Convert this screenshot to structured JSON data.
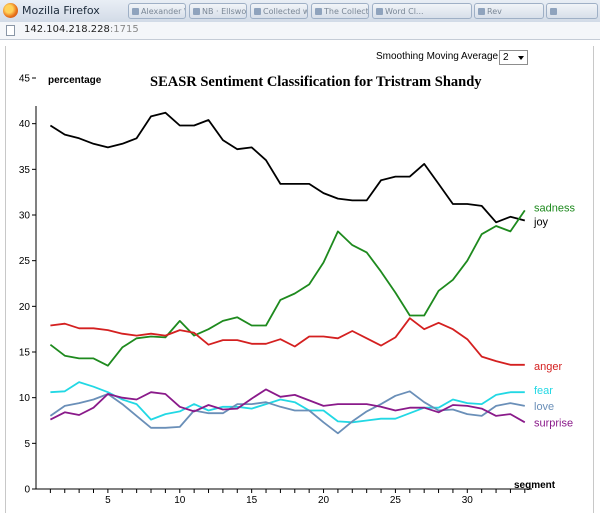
{
  "window": {
    "title": "Mozilla Firefox",
    "tabs": [
      "Mozilla Firefox",
      "Alexander Wordsw...",
      "NB · Ellsworth Coll...",
      "Collected works",
      "The Collected Wo...",
      "Word Cl...",
      "Rev"
    ]
  },
  "address": {
    "host": "142.104.218.228",
    "port": ":1715"
  },
  "controls": {
    "smoothing_label": "Smoothing Moving Average of",
    "smoothing_value": "2"
  },
  "chart_data": {
    "type": "line",
    "title": "SEASR Sentiment Classification for Tristram Shandy",
    "ylabel": "percentage",
    "xlabel": "segment",
    "xlim": [
      0,
      34.5
    ],
    "ylim": [
      0,
      45
    ],
    "xticks": [
      5,
      10,
      15,
      20,
      25,
      30
    ],
    "yticks": [
      0,
      5,
      10,
      15,
      20,
      25,
      30,
      35,
      40,
      45
    ],
    "grid": false,
    "legend": "labels at right end of each line",
    "x": [
      1,
      2,
      3,
      4,
      5,
      6,
      7,
      8,
      9,
      10,
      11,
      12,
      13,
      14,
      15,
      16,
      17,
      18,
      19,
      20,
      21,
      22,
      23,
      24,
      25,
      26,
      27,
      28,
      29,
      30,
      31,
      32,
      33,
      34
    ],
    "series": [
      {
        "name": "joy",
        "color": "#000000",
        "values": [
          39.8,
          38.8,
          38.4,
          37.8,
          37.4,
          37.8,
          38.4,
          40.8,
          41.2,
          39.8,
          39.8,
          40.4,
          38.2,
          37.2,
          37.4,
          36.0,
          33.4,
          33.4,
          33.4,
          32.4,
          31.8,
          31.6,
          31.6,
          33.8,
          34.2,
          34.2,
          35.6,
          33.4,
          31.2,
          31.2,
          31.0,
          29.2,
          29.8,
          29.4
        ]
      },
      {
        "name": "sadness",
        "color": "#1e8a1e",
        "values": [
          15.8,
          14.6,
          14.3,
          14.3,
          13.5,
          15.5,
          16.5,
          16.7,
          16.6,
          18.4,
          16.8,
          17.5,
          18.4,
          18.8,
          17.9,
          17.9,
          20.7,
          21.4,
          22.4,
          24.8,
          28.2,
          26.7,
          25.9,
          23.8,
          21.5,
          19.0,
          19.0,
          21.7,
          22.9,
          25.0,
          27.9,
          28.8,
          28.2,
          30.5
        ]
      },
      {
        "name": "anger",
        "color": "#d42020",
        "values": [
          17.9,
          18.1,
          17.6,
          17.6,
          17.4,
          17.0,
          16.8,
          17.0,
          16.8,
          17.4,
          17.1,
          15.8,
          16.3,
          16.3,
          15.9,
          15.9,
          16.4,
          15.6,
          16.7,
          16.7,
          16.5,
          17.3,
          16.5,
          15.7,
          16.6,
          18.7,
          17.5,
          18.2,
          17.5,
          16.4,
          14.5,
          14.0,
          13.6,
          13.6
        ]
      },
      {
        "name": "fear",
        "color": "#22d8e4",
        "values": [
          10.6,
          10.7,
          11.7,
          11.2,
          10.6,
          9.8,
          9.3,
          7.6,
          8.2,
          8.5,
          9.3,
          8.6,
          9.0,
          9.0,
          8.8,
          9.3,
          9.8,
          9.5,
          8.6,
          8.6,
          7.4,
          7.3,
          7.5,
          7.7,
          7.7,
          8.3,
          8.9,
          8.9,
          9.8,
          9.4,
          9.3,
          10.3,
          10.6,
          10.6
        ]
      },
      {
        "name": "love",
        "color": "#6a8fb8",
        "values": [
          8.0,
          9.1,
          9.4,
          9.8,
          10.4,
          9.3,
          8.0,
          6.7,
          6.7,
          6.8,
          8.6,
          8.3,
          8.3,
          9.3,
          9.3,
          9.5,
          9.0,
          8.6,
          8.6,
          7.3,
          6.1,
          7.4,
          8.5,
          9.3,
          10.2,
          10.7,
          9.5,
          8.6,
          8.7,
          8.2,
          8.0,
          9.1,
          9.4,
          9.1
        ]
      },
      {
        "name": "surprise",
        "color": "#8a1a8a",
        "values": [
          7.6,
          8.4,
          8.1,
          8.9,
          10.4,
          10.0,
          9.8,
          10.6,
          10.4,
          9.0,
          8.5,
          9.2,
          8.7,
          8.8,
          9.9,
          10.9,
          10.1,
          10.3,
          9.7,
          9.1,
          9.3,
          9.3,
          9.3,
          9.0,
          8.6,
          8.9,
          8.9,
          8.4,
          9.2,
          9.1,
          8.8,
          8.0,
          8.2,
          7.3
        ]
      }
    ]
  }
}
